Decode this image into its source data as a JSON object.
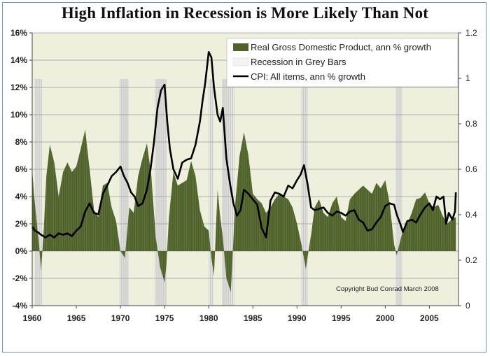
{
  "title": "High Inflation in Recession is More Likely Than Not",
  "copyright": "Copyright Bud Conrad  March 2008",
  "legend": {
    "gdp": "Real Gross Domestic Product, ann % growth",
    "recession": "Recession in Grey Bars",
    "cpi": "CPI: All items, ann % growth"
  },
  "colors": {
    "plot_bg": "#eef0dd",
    "gdp": "#4e6128",
    "recession": "#c8c8c8",
    "cpi": "#000000",
    "frame": "#6b8fc7"
  },
  "chart_data": {
    "type": "area",
    "xlim": [
      1960,
      2008.3
    ],
    "ylim": [
      -4,
      16
    ],
    "y2lim": [
      0,
      1.2
    ],
    "x_ticks": [
      "1960",
      "1965",
      "1970",
      "1975",
      "1980",
      "1985",
      "1990",
      "1995",
      "2000",
      "2005"
    ],
    "y_ticks": [
      "-4%",
      "-2%",
      "0%",
      "2%",
      "4%",
      "6%",
      "8%",
      "10%",
      "12%",
      "14%",
      "16%"
    ],
    "y2_ticks": [
      "0",
      "0.2",
      "0.4",
      "0.6",
      "0.8",
      "1",
      "1.2"
    ],
    "grid": "horizontal",
    "legend_position": "top-right",
    "recessions": [
      [
        1960.3,
        1961.1
      ],
      [
        1969.9,
        1970.9
      ],
      [
        1973.9,
        1975.2
      ],
      [
        1980.0,
        1980.5
      ],
      [
        1981.5,
        1982.9
      ],
      [
        1990.5,
        1991.2
      ],
      [
        2001.2,
        2001.9
      ]
    ],
    "series": [
      {
        "name": "Real Gross Domestic Product, ann % growth",
        "kind": "area",
        "x": [
          1960,
          1960.2,
          1960.5,
          1960.8,
          1961,
          1961.3,
          1961.6,
          1962,
          1962.5,
          1963,
          1963.5,
          1964,
          1964.5,
          1965,
          1965.5,
          1966,
          1966.5,
          1967,
          1967.5,
          1968,
          1968.5,
          1969,
          1969.5,
          1970,
          1970.5,
          1971,
          1971.5,
          1972,
          1972.5,
          1973,
          1973.5,
          1974,
          1974.5,
          1975,
          1975.2,
          1975.5,
          1976,
          1976.5,
          1977,
          1977.5,
          1978,
          1978.5,
          1979,
          1979.5,
          1980,
          1980.3,
          1980.6,
          1981,
          1981.3,
          1981.6,
          1982,
          1982.5,
          1983,
          1983.5,
          1984,
          1984.5,
          1985,
          1985.5,
          1986,
          1986.5,
          1987,
          1987.5,
          1988,
          1988.5,
          1989,
          1989.5,
          1990,
          1990.5,
          1991,
          1991.3,
          1991.6,
          1992,
          1992.5,
          1993,
          1993.5,
          1994,
          1994.5,
          1995,
          1995.5,
          1996,
          1996.5,
          1997,
          1997.5,
          1998,
          1998.5,
          1999,
          1999.5,
          2000,
          2000.5,
          2001,
          2001.3,
          2001.6,
          2002,
          2002.5,
          2003,
          2003.5,
          2004,
          2004.5,
          2005,
          2005.5,
          2006,
          2006.5,
          2007,
          2007.5,
          2008
        ],
        "values": [
          6.0,
          4.2,
          2.2,
          0.3,
          -1.5,
          1.5,
          5.5,
          7.8,
          6.5,
          4.0,
          5.8,
          6.5,
          5.8,
          6.2,
          7.5,
          8.9,
          6.0,
          3.0,
          2.5,
          4.8,
          5.0,
          3.2,
          2.2,
          0.0,
          -0.5,
          3.2,
          2.8,
          5.5,
          6.8,
          7.9,
          5.5,
          1.0,
          -1.2,
          -2.3,
          -1.0,
          2.5,
          5.8,
          4.8,
          5.0,
          5.2,
          6.6,
          5.5,
          3.0,
          1.8,
          1.5,
          -0.5,
          -1.8,
          4.5,
          2.5,
          1.0,
          -2.0,
          -3.0,
          3.5,
          7.0,
          8.7,
          7.0,
          4.2,
          3.8,
          3.5,
          2.8,
          3.2,
          3.8,
          4.2,
          4.0,
          3.8,
          3.2,
          2.0,
          0.5,
          -1.3,
          0.0,
          1.2,
          3.2,
          3.8,
          2.8,
          2.5,
          3.5,
          4.0,
          2.5,
          2.2,
          3.8,
          4.2,
          4.5,
          4.8,
          4.5,
          4.2,
          5.0,
          4.6,
          5.2,
          3.5,
          0.5,
          -0.3,
          0.5,
          1.5,
          2.0,
          2.8,
          3.8,
          3.9,
          4.3,
          3.5,
          3.2,
          3.4,
          2.6,
          2.0,
          2.3,
          2.5
        ]
      },
      {
        "name": "CPI: All items, ann % growth",
        "kind": "line",
        "x": [
          1960,
          1960.3,
          1960.6,
          1961,
          1961.5,
          1962,
          1962.5,
          1963,
          1963.5,
          1964,
          1964.5,
          1965,
          1965.5,
          1966,
          1966.5,
          1967,
          1967.5,
          1968,
          1968.5,
          1969,
          1969.5,
          1970,
          1970.4,
          1970.8,
          1971.2,
          1971.6,
          1972,
          1972.5,
          1973,
          1973.4,
          1973.8,
          1974.2,
          1974.6,
          1975,
          1975.3,
          1975.6,
          1976,
          1976.5,
          1977,
          1977.5,
          1978,
          1978.5,
          1979,
          1979.3,
          1979.6,
          1980,
          1980.3,
          1980.6,
          1981,
          1981.3,
          1981.6,
          1982,
          1982.4,
          1982.8,
          1983.2,
          1983.6,
          1984,
          1984.5,
          1985,
          1985.5,
          1986,
          1986.5,
          1987,
          1987.5,
          1988,
          1988.5,
          1989,
          1989.5,
          1990,
          1990.4,
          1990.8,
          1991.2,
          1991.6,
          1992,
          1992.5,
          1993,
          1993.5,
          1994,
          1994.5,
          1995,
          1995.5,
          1996,
          1996.5,
          1997,
          1997.5,
          1998,
          1998.5,
          1999,
          1999.5,
          2000,
          2000.5,
          2001,
          2001.3,
          2001.7,
          2002,
          2002.5,
          2003,
          2003.5,
          2004,
          2004.5,
          2005,
          2005.4,
          2005.8,
          2006.2,
          2006.6,
          2006.9,
          2007.2,
          2007.6,
          2007.9,
          2008
        ],
        "values": [
          1.8,
          1.5,
          1.4,
          1.2,
          1.0,
          1.2,
          1.0,
          1.3,
          1.2,
          1.3,
          1.1,
          1.5,
          1.8,
          2.9,
          3.5,
          2.8,
          2.7,
          4.2,
          4.8,
          5.5,
          5.8,
          6.2,
          5.5,
          5.0,
          4.3,
          4.0,
          3.3,
          3.5,
          4.5,
          6.0,
          8.0,
          10.5,
          11.8,
          12.2,
          9.5,
          7.5,
          6.0,
          5.3,
          6.5,
          6.7,
          6.8,
          7.8,
          9.5,
          11.0,
          12.3,
          14.6,
          14.2,
          12.0,
          10.0,
          9.5,
          10.5,
          6.8,
          5.0,
          3.5,
          2.6,
          3.0,
          4.5,
          4.2,
          3.8,
          3.4,
          1.7,
          1.0,
          3.7,
          4.3,
          4.2,
          4.0,
          4.8,
          4.6,
          5.2,
          5.6,
          6.3,
          4.9,
          3.2,
          3.0,
          3.1,
          3.2,
          2.8,
          2.6,
          2.9,
          2.8,
          2.6,
          2.9,
          3.0,
          2.3,
          2.1,
          1.5,
          1.6,
          2.1,
          2.5,
          3.3,
          3.5,
          3.4,
          2.7,
          2.0,
          1.4,
          2.2,
          2.3,
          2.1,
          2.7,
          3.2,
          3.5,
          3.0,
          4.0,
          3.8,
          4.0,
          2.0,
          2.8,
          2.3,
          2.9,
          4.3
        ]
      }
    ]
  }
}
